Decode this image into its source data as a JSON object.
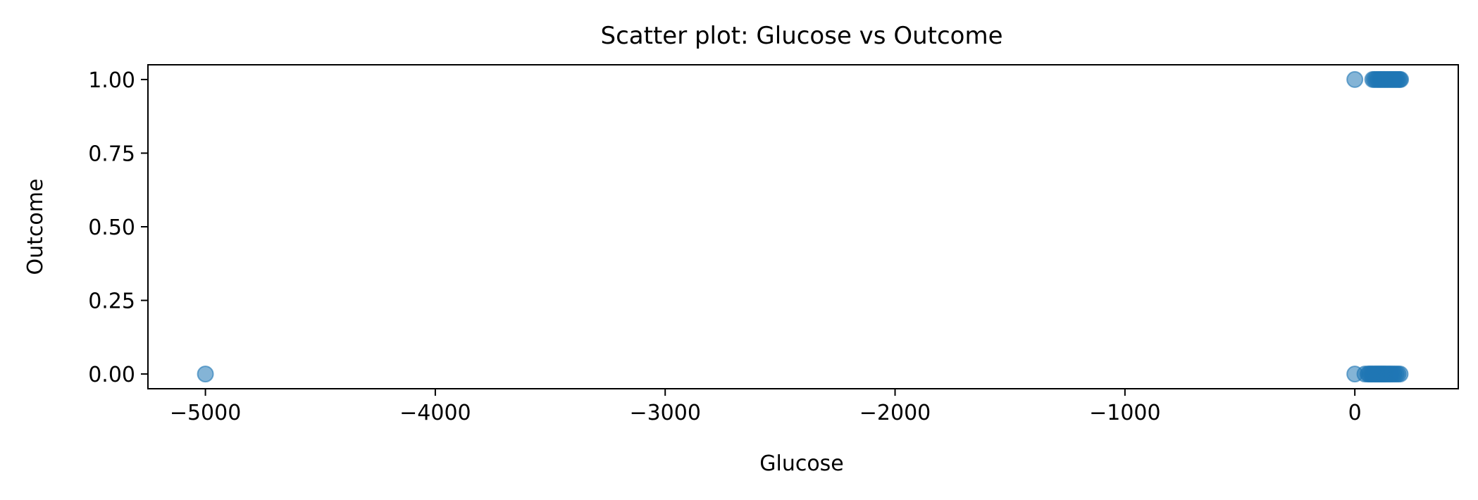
{
  "chart_data": {
    "type": "scatter",
    "title": "Scatter plot: Glucose vs Outcome",
    "xlabel": "Glucose",
    "ylabel": "Outcome",
    "xlim": [
      -5250,
      450
    ],
    "ylim": [
      -0.05,
      1.05
    ],
    "xticks": [
      -5000,
      -4000,
      -3000,
      -2000,
      -1000,
      0
    ],
    "xtick_labels": [
      "−5000",
      "−4000",
      "−3000",
      "−2000",
      "−1000",
      "0"
    ],
    "yticks": [
      0,
      0.25,
      0.5,
      0.75,
      1
    ],
    "ytick_labels": [
      "0.00",
      "0.25",
      "0.50",
      "0.75",
      "1.00"
    ],
    "grid": false,
    "legend": "none",
    "marker_color": "#1f77b4",
    "marker_alpha": 0.55,
    "series": [
      {
        "points": [
          {
            "x": -5000,
            "y": 0
          },
          {
            "x": 0,
            "y": 0
          },
          {
            "x": 0,
            "y": 1
          },
          {
            "x": 44,
            "y": 0
          },
          {
            "x": 57,
            "y": 0
          },
          {
            "x": 62,
            "y": 0
          },
          {
            "x": 68,
            "y": 0
          },
          {
            "x": 73,
            "y": 0
          },
          {
            "x": 78,
            "y": 0
          },
          {
            "x": 84,
            "y": 0
          },
          {
            "x": 89,
            "y": 0
          },
          {
            "x": 94,
            "y": 0
          },
          {
            "x": 99,
            "y": 0
          },
          {
            "x": 104,
            "y": 0
          },
          {
            "x": 109,
            "y": 0
          },
          {
            "x": 114,
            "y": 0
          },
          {
            "x": 119,
            "y": 0
          },
          {
            "x": 124,
            "y": 0
          },
          {
            "x": 129,
            "y": 0
          },
          {
            "x": 134,
            "y": 0
          },
          {
            "x": 140,
            "y": 0
          },
          {
            "x": 146,
            "y": 0
          },
          {
            "x": 152,
            "y": 0
          },
          {
            "x": 158,
            "y": 0
          },
          {
            "x": 165,
            "y": 0
          },
          {
            "x": 172,
            "y": 0
          },
          {
            "x": 180,
            "y": 0
          },
          {
            "x": 188,
            "y": 0
          },
          {
            "x": 197,
            "y": 0
          },
          {
            "x": 78,
            "y": 1
          },
          {
            "x": 85,
            "y": 1
          },
          {
            "x": 92,
            "y": 1
          },
          {
            "x": 99,
            "y": 1
          },
          {
            "x": 105,
            "y": 1
          },
          {
            "x": 111,
            "y": 1
          },
          {
            "x": 117,
            "y": 1
          },
          {
            "x": 123,
            "y": 1
          },
          {
            "x": 129,
            "y": 1
          },
          {
            "x": 135,
            "y": 1
          },
          {
            "x": 141,
            "y": 1
          },
          {
            "x": 147,
            "y": 1
          },
          {
            "x": 153,
            "y": 1
          },
          {
            "x": 159,
            "y": 1
          },
          {
            "x": 165,
            "y": 1
          },
          {
            "x": 171,
            "y": 1
          },
          {
            "x": 177,
            "y": 1
          },
          {
            "x": 183,
            "y": 1
          },
          {
            "x": 189,
            "y": 1
          },
          {
            "x": 195,
            "y": 1
          },
          {
            "x": 199,
            "y": 1
          }
        ]
      }
    ]
  }
}
